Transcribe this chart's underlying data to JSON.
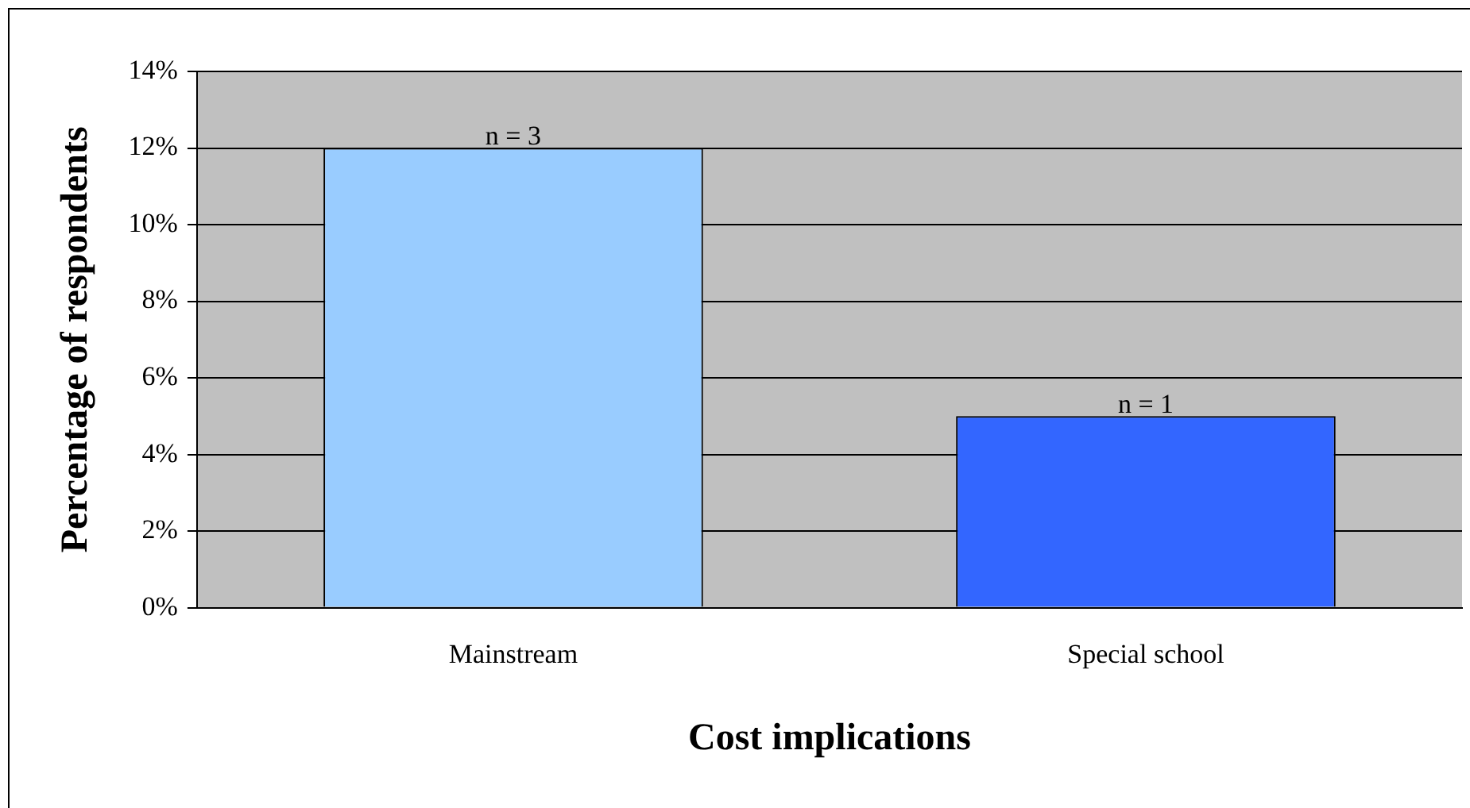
{
  "chart_data": {
    "type": "bar",
    "xlabel": "Cost implications",
    "ylabel": "Percentage of respondents",
    "categories": [
      "Mainstream",
      "Special school"
    ],
    "values": [
      12,
      5
    ],
    "colors": [
      "#99ccff",
      "#3366ff"
    ],
    "annotations": [
      {
        "text": "n = 3",
        "x": "Mainstream",
        "y": 12
      },
      {
        "text": "n = 1",
        "x": "Special school",
        "y": 5
      }
    ],
    "ylim": [
      0,
      14
    ],
    "yticks": [
      {
        "value": 0,
        "label": "0%"
      },
      {
        "value": 2,
        "label": "2%"
      },
      {
        "value": 4,
        "label": "4%"
      },
      {
        "value": 6,
        "label": "6%"
      },
      {
        "value": 8,
        "label": "8%"
      },
      {
        "value": 10,
        "label": "10%"
      },
      {
        "value": 12,
        "label": "12%"
      },
      {
        "value": 14,
        "label": "14%"
      }
    ],
    "grid": "y",
    "legend": false
  }
}
